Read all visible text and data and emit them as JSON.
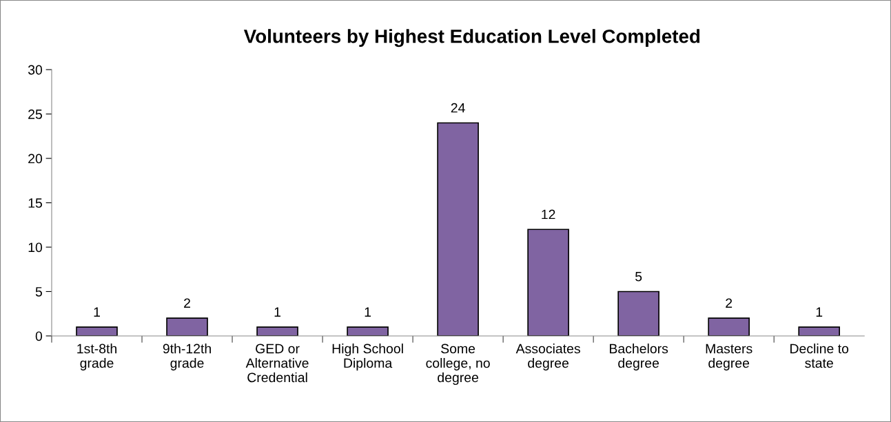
{
  "chart_data": {
    "type": "bar",
    "title": "Volunteers by Highest Education Level Completed",
    "categories": [
      "1st-8th grade",
      "9th-12th grade",
      "GED or Alternative Credential",
      "High School Diploma",
      "Some college, no degree",
      "Associates degree",
      "Bachelors degree",
      "Masters degree",
      "Decline to state"
    ],
    "values": [
      1,
      2,
      1,
      1,
      24,
      12,
      5,
      2,
      1
    ],
    "color": "#8064a2",
    "ylim": [
      0,
      30
    ],
    "yticks": [
      0,
      5,
      10,
      15,
      20,
      25,
      30
    ],
    "data_labels": true,
    "grid": false,
    "legend": false
  }
}
